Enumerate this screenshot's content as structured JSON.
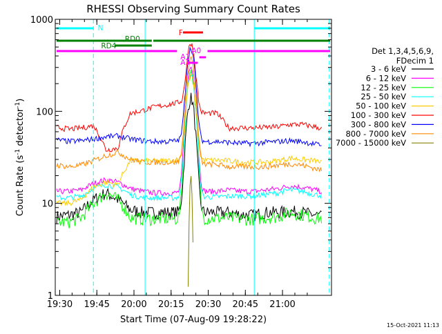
{
  "chart_data": {
    "type": "line",
    "title": "RHESSI Observing Summary Count Rates",
    "xlabel": "Start Time (07-Aug-09 19:28:22)",
    "ylabel_main": "Count Rate (s",
    "ylabel_sup1": "-1",
    "ylabel_mid": " detector",
    "ylabel_sup2": "-1",
    "ylabel_end": ")",
    "y_scale": "log",
    "ylim": [
      1,
      1000
    ],
    "xlim_minutes": [
      19.47,
      21.33
    ],
    "x_ticks": [
      {
        "label": "19:30",
        "hour": 19.5
      },
      {
        "label": "19:45",
        "hour": 19.75
      },
      {
        "label": "20:00",
        "hour": 20.0
      },
      {
        "label": "20:15",
        "hour": 20.25
      },
      {
        "label": "20:30",
        "hour": 20.5
      },
      {
        "label": "20:45",
        "hour": 20.75
      },
      {
        "label": "21:00",
        "hour": 21.0
      }
    ],
    "y_ticks": [
      {
        "label": "1",
        "value": 1
      },
      {
        "label": "10",
        "value": 10
      },
      {
        "label": "100",
        "value": 100
      },
      {
        "label": "1000",
        "value": 1000
      }
    ],
    "legend_header1": "Det 1,3,4,5,6,9,",
    "legend_header2": "FDecim 1",
    "legend_placement": "right",
    "series": [
      {
        "name": "3 - 6 keV",
        "color": "#000000",
        "base": [
          7.2,
          7.5,
          8,
          11,
          13,
          11,
          8.5,
          8,
          8,
          8,
          8,
          120,
          140,
          100,
          8,
          7.5,
          7.5,
          8,
          8,
          8.2,
          8,
          7.5,
          7.2
        ]
      },
      {
        "name": "6 - 12 keV",
        "color": "#ff00ff",
        "base": [
          13.5,
          13.5,
          14,
          16.5,
          18,
          17,
          14.5,
          13.5,
          13,
          13,
          13,
          250,
          300,
          200,
          14,
          13.5,
          13.5,
          14,
          14.5,
          15.5,
          15,
          14,
          13
        ]
      },
      {
        "name": "12 - 25 keV",
        "color": "#00ff00",
        "base": [
          6.2,
          6.3,
          7,
          10,
          13,
          11,
          7,
          6.8,
          6.8,
          6.8,
          6.8,
          200,
          270,
          150,
          7,
          6.8,
          6.8,
          7,
          7.2,
          8,
          7.5,
          7,
          6.8
        ]
      },
      {
        "name": "25 - 50 keV",
        "color": "#00ffff",
        "base": [
          11.5,
          11.5,
          12,
          14.5,
          16,
          15,
          12.5,
          11.5,
          11.5,
          11.5,
          11.5,
          210,
          260,
          170,
          12,
          12,
          12,
          12.5,
          13,
          14,
          13.5,
          12.5,
          12
        ]
      },
      {
        "name": "50 - 100 keV",
        "color": "#ffcc00",
        "base": [
          10,
          10,
          11,
          15,
          17,
          16,
          29,
          29,
          29,
          29,
          30,
          200,
          250,
          150,
          29,
          28,
          28,
          28,
          29,
          31,
          30,
          29,
          27
        ]
      },
      {
        "name": "100 - 300 keV",
        "color": "#ff0000",
        "base": [
          67,
          64,
          66,
          70,
          38,
          40,
          95,
          102,
          112,
          118,
          125,
          460,
          550,
          400,
          66,
          66,
          66,
          67,
          68,
          72,
          72,
          68,
          63
        ]
      },
      {
        "name": "300 - 800 keV",
        "color": "#0000ff",
        "base": [
          49,
          47,
          48,
          50,
          53,
          54,
          50,
          48,
          47,
          47,
          48,
          420,
          480,
          330,
          46,
          45,
          45,
          46,
          47,
          48,
          47,
          44,
          42
        ]
      },
      {
        "name": "800 - 7000 keV",
        "color": "#ff8800",
        "base": [
          26,
          25,
          26,
          29,
          33,
          36,
          30,
          28,
          28,
          28,
          28,
          330,
          380,
          260,
          25,
          25,
          25,
          25,
          26,
          27,
          26,
          24,
          22
        ]
      },
      {
        "name": "7000 - 15000 keV",
        "color": "#808000",
        "base": [
          0,
          0,
          0,
          0,
          0,
          0,
          0,
          0,
          0,
          0,
          0,
          10,
          20,
          8,
          0,
          0,
          0,
          0,
          0,
          0,
          0,
          0,
          0
        ]
      }
    ],
    "flags": [
      {
        "label": "N",
        "color": "#00ffff"
      },
      {
        "label": "RD0",
        "color": "#008000"
      },
      {
        "label": "RD4",
        "color": "#008000"
      },
      {
        "label": "F",
        "color": "#ff0000"
      },
      {
        "label": "A0",
        "color": "#ff00ff"
      },
      {
        "label": "A1",
        "color": "#ff00ff"
      },
      {
        "label": "A3",
        "color": "#ff00ff"
      }
    ],
    "timestamp": "15-Oct-2021 11:13"
  }
}
